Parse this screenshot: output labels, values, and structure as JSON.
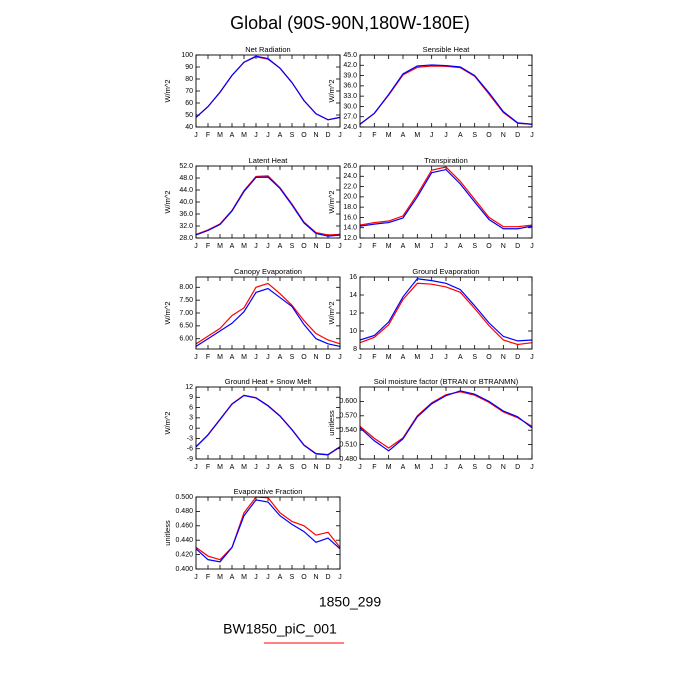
{
  "title": "Global (90S-90N,180W-180E)",
  "chart_data": [
    {
      "type": "line",
      "title": "Net Radiation",
      "ylabel": "W/m^2",
      "categories": [
        "J",
        "F",
        "M",
        "A",
        "M",
        "J",
        "J",
        "A",
        "S",
        "O",
        "N",
        "D",
        "J"
      ],
      "ylim": [
        40,
        100
      ],
      "yticks": [
        40,
        50,
        60,
        70,
        80,
        90,
        100
      ],
      "series": [
        {
          "name": "1850_299",
          "color": "#0000ff",
          "values": [
            48,
            57,
            69,
            83,
            94,
            99,
            97,
            89,
            77,
            62,
            51,
            46,
            48
          ]
        },
        {
          "name": "BW1850_piC_001",
          "color": "#ff0000",
          "values": [
            48,
            57,
            69,
            83,
            94,
            98.5,
            96.5,
            89,
            77,
            62,
            51,
            46,
            48
          ]
        }
      ]
    },
    {
      "type": "line",
      "title": "Sensible Heat",
      "ylabel": "W/m^2",
      "categories": [
        "J",
        "F",
        "M",
        "A",
        "M",
        "J",
        "J",
        "A",
        "S",
        "O",
        "N",
        "D",
        "J"
      ],
      "ylim": [
        24,
        45
      ],
      "yticks": [
        {
          "value": 24,
          "label": "24.0"
        },
        {
          "value": 27,
          "label": "27.0"
        },
        {
          "value": 30,
          "label": "30.0"
        },
        {
          "value": 33,
          "label": "33.0"
        },
        {
          "value": 36,
          "label": "36.0"
        },
        {
          "value": 39,
          "label": "39.0"
        },
        {
          "value": 42,
          "label": "42.0"
        },
        {
          "value": 45,
          "label": "45.0"
        }
      ],
      "series": [
        {
          "name": "1850_299",
          "color": "#0000ff",
          "values": [
            24.8,
            28,
            33.5,
            39.5,
            41.8,
            42.1,
            41.9,
            41.5,
            39,
            34,
            28.5,
            25.2,
            24.8
          ]
        },
        {
          "name": "BW1850_piC_001",
          "color": "#ff0000",
          "values": [
            24.8,
            28,
            33.3,
            39.2,
            41.4,
            41.8,
            41.7,
            41.3,
            38.8,
            33.6,
            28.2,
            25.1,
            24.8
          ]
        }
      ]
    },
    {
      "type": "line",
      "title": "Latent Heat",
      "ylabel": "W/m^2",
      "categories": [
        "J",
        "F",
        "M",
        "A",
        "M",
        "J",
        "J",
        "A",
        "S",
        "O",
        "N",
        "D",
        "J"
      ],
      "ylim": [
        28,
        52
      ],
      "yticks": [
        {
          "value": 28,
          "label": "28.0"
        },
        {
          "value": 32,
          "label": "32.0"
        },
        {
          "value": 36,
          "label": "36.0"
        },
        {
          "value": 40,
          "label": "40.0"
        },
        {
          "value": 44,
          "label": "44.0"
        },
        {
          "value": 48,
          "label": "48.0"
        },
        {
          "value": 52,
          "label": "52.0"
        }
      ],
      "series": [
        {
          "name": "1850_299",
          "color": "#0000ff",
          "values": [
            29,
            30.5,
            32.5,
            37,
            43.5,
            48.2,
            48.3,
            44.5,
            39,
            33,
            29.5,
            28.6,
            29
          ]
        },
        {
          "name": "BW1850_piC_001",
          "color": "#ff0000",
          "values": [
            29.2,
            30.7,
            32.7,
            37.2,
            43.8,
            48.5,
            48.7,
            44.8,
            39.3,
            33.3,
            29.8,
            29,
            29.2
          ]
        }
      ]
    },
    {
      "type": "line",
      "title": "Transpiration",
      "ylabel": "W/m^2",
      "categories": [
        "J",
        "F",
        "M",
        "A",
        "M",
        "J",
        "J",
        "A",
        "S",
        "O",
        "N",
        "D",
        "J"
      ],
      "ylim": [
        12,
        26
      ],
      "yticks": [
        {
          "value": 12,
          "label": "12.0"
        },
        {
          "value": 14,
          "label": "14.0"
        },
        {
          "value": 16,
          "label": "16.0"
        },
        {
          "value": 18,
          "label": "18.0"
        },
        {
          "value": 20,
          "label": "20.0"
        },
        {
          "value": 22,
          "label": "22.0"
        },
        {
          "value": 24,
          "label": "24.0"
        },
        {
          "value": 26,
          "label": "26.0"
        }
      ],
      "series": [
        {
          "name": "1850_299",
          "color": "#0000ff",
          "values": [
            14.3,
            14.7,
            15,
            15.9,
            20,
            24.7,
            25.3,
            22.5,
            19,
            15.6,
            13.8,
            13.8,
            14.3
          ]
        },
        {
          "name": "BW1850_piC_001",
          "color": "#ff0000",
          "values": [
            14.5,
            15,
            15.3,
            16.3,
            20.5,
            25.2,
            25.8,
            23,
            19.5,
            16,
            14.2,
            14.2,
            14.5
          ]
        }
      ]
    },
    {
      "type": "line",
      "title": "Canopy Evaporation",
      "ylabel": "W/m^2",
      "categories": [
        "J",
        "F",
        "M",
        "A",
        "M",
        "J",
        "J",
        "A",
        "S",
        "O",
        "N",
        "D",
        "J"
      ],
      "ylim": [
        5.6,
        8.4
      ],
      "yticks": [
        {
          "value": 6,
          "label": "6.00"
        },
        {
          "value": 6.5,
          "label": "6.50"
        },
        {
          "value": 7,
          "label": "7.00"
        },
        {
          "value": 7.5,
          "label": "7.50"
        },
        {
          "value": 8,
          "label": "8.00"
        }
      ],
      "series": [
        {
          "name": "1850_299",
          "color": "#0000ff",
          "values": [
            5.7,
            6,
            6.3,
            6.6,
            7.05,
            7.8,
            7.95,
            7.6,
            7.25,
            6.55,
            6,
            5.8,
            5.7
          ]
        },
        {
          "name": "BW1850_piC_001",
          "color": "#ff0000",
          "values": [
            5.8,
            6.1,
            6.4,
            6.9,
            7.2,
            8,
            8.15,
            7.75,
            7.3,
            6.7,
            6.2,
            5.95,
            5.8
          ]
        }
      ]
    },
    {
      "type": "line",
      "title": "Ground Evaporation",
      "ylabel": "W/m^2",
      "categories": [
        "J",
        "F",
        "M",
        "A",
        "M",
        "J",
        "J",
        "A",
        "S",
        "O",
        "N",
        "D",
        "J"
      ],
      "ylim": [
        8,
        16
      ],
      "yticks": [
        8,
        10,
        12,
        14,
        16
      ],
      "series": [
        {
          "name": "1850_299",
          "color": "#0000ff",
          "values": [
            9,
            9.5,
            11,
            13.8,
            15.8,
            15.6,
            15.3,
            14.6,
            12.8,
            10.9,
            9.4,
            8.9,
            9
          ]
        },
        {
          "name": "BW1850_piC_001",
          "color": "#ff0000",
          "values": [
            8.7,
            9.3,
            10.7,
            13.5,
            15.3,
            15.2,
            14.9,
            14.3,
            12.5,
            10.6,
            9,
            8.5,
            8.7
          ]
        }
      ]
    },
    {
      "type": "line",
      "title": "Ground Heat + Snow Melt",
      "ylabel": "W/m^2",
      "categories": [
        "J",
        "F",
        "M",
        "A",
        "M",
        "J",
        "J",
        "A",
        "S",
        "O",
        "N",
        "D",
        "J"
      ],
      "ylim": [
        -9,
        12
      ],
      "yticks": [
        -9,
        -6,
        -3,
        0,
        3,
        6,
        9,
        12
      ],
      "series": [
        {
          "name": "1850_299",
          "color": "#0000ff",
          "values": [
            -5.5,
            -2,
            2.5,
            7,
            9.5,
            8.8,
            6.5,
            3.5,
            -0.5,
            -5,
            -7.5,
            -7.8,
            -5.5
          ]
        },
        {
          "name": "BW1850_piC_001",
          "color": "#ff0000",
          "values": [
            -5.4,
            -1.9,
            2.6,
            7.1,
            9.6,
            8.9,
            6.6,
            3.6,
            -0.4,
            -4.9,
            -7.4,
            -7.7,
            -5.4
          ]
        }
      ]
    },
    {
      "type": "line",
      "title": "Soil moisture factor (BTRAN or BTRANMN)",
      "ylabel": "unitless",
      "categories": [
        "J",
        "F",
        "M",
        "A",
        "M",
        "J",
        "J",
        "A",
        "S",
        "O",
        "N",
        "D",
        "J"
      ],
      "ylim": [
        0.48,
        0.63
      ],
      "yticks": [
        {
          "value": 0.48,
          "label": "0.480"
        },
        {
          "value": 0.51,
          "label": "0.510"
        },
        {
          "value": 0.54,
          "label": "0.540"
        },
        {
          "value": 0.57,
          "label": "0.570"
        },
        {
          "value": 0.6,
          "label": "0.600"
        }
      ],
      "series": [
        {
          "name": "1850_299",
          "color": "#0000ff",
          "values": [
            0.545,
            0.518,
            0.497,
            0.522,
            0.568,
            0.595,
            0.612,
            0.622,
            0.615,
            0.6,
            0.58,
            0.568,
            0.545
          ]
        },
        {
          "name": "BW1850_piC_001",
          "color": "#ff0000",
          "values": [
            0.548,
            0.523,
            0.503,
            0.524,
            0.57,
            0.597,
            0.614,
            0.62,
            0.613,
            0.598,
            0.578,
            0.566,
            0.548
          ]
        }
      ]
    },
    {
      "type": "line",
      "title": "Evaporative Fraction",
      "ylabel": "unitless",
      "categories": [
        "J",
        "F",
        "M",
        "A",
        "M",
        "J",
        "J",
        "A",
        "S",
        "O",
        "N",
        "D",
        "J"
      ],
      "ylim": [
        0.4,
        0.5
      ],
      "yticks": [
        {
          "value": 0.4,
          "label": "0.400"
        },
        {
          "value": 0.42,
          "label": "0.420"
        },
        {
          "value": 0.44,
          "label": "0.440"
        },
        {
          "value": 0.46,
          "label": "0.460"
        },
        {
          "value": 0.48,
          "label": "0.480"
        },
        {
          "value": 0.5,
          "label": "0.500"
        }
      ],
      "series": [
        {
          "name": "1850_299",
          "color": "#0000ff",
          "values": [
            0.428,
            0.413,
            0.41,
            0.43,
            0.474,
            0.496,
            0.493,
            0.474,
            0.462,
            0.452,
            0.437,
            0.443,
            0.428
          ]
        },
        {
          "name": "BW1850_piC_001",
          "color": "#ff0000",
          "values": [
            0.43,
            0.418,
            0.413,
            0.43,
            0.478,
            0.5,
            0.499,
            0.478,
            0.466,
            0.46,
            0.447,
            0.451,
            0.43
          ]
        }
      ]
    }
  ]
}
